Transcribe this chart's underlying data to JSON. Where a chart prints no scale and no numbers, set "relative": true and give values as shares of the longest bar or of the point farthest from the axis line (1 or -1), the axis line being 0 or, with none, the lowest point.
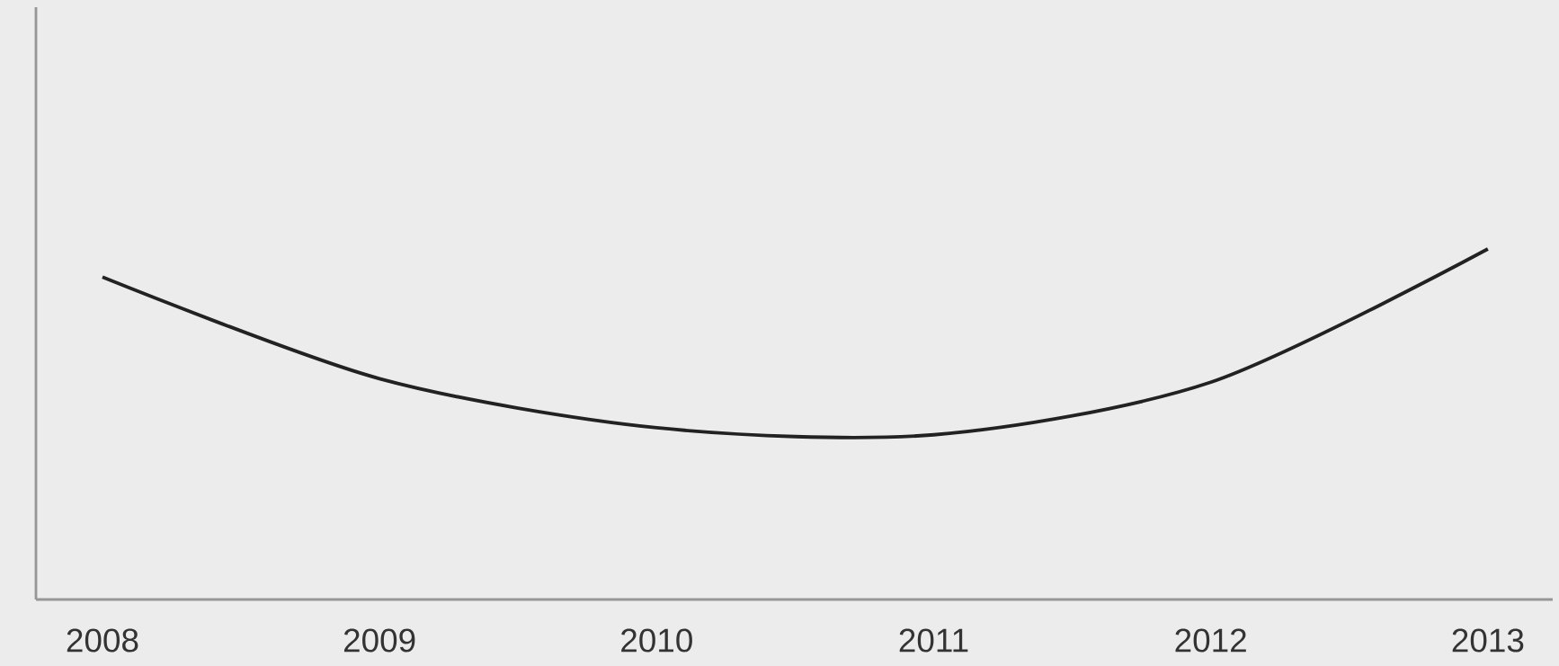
{
  "chart_data": {
    "type": "line",
    "relative": true,
    "categories": [
      "2008",
      "2009",
      "2010",
      "2011",
      "2012",
      "2013"
    ],
    "series": [
      {
        "color": "#222222",
        "values": [
          0.92,
          0.63,
          0.49,
          0.47,
          0.62,
          1.0
        ]
      }
    ],
    "tick_labels": "x",
    "grid": false,
    "marker": "none",
    "line_style": "solid"
  }
}
